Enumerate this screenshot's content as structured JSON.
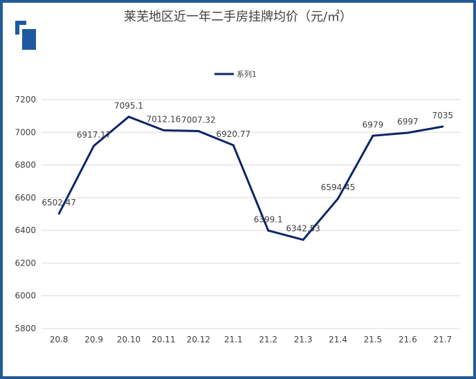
{
  "chart_data": {
    "type": "line",
    "title": "莱芜地区近一年二手房挂牌均价（元/㎡）",
    "categories": [
      "20.8",
      "20.9",
      "20.10",
      "20.11",
      "20.12",
      "21.1",
      "21.2",
      "21.3",
      "21.4",
      "21.5",
      "21.6",
      "21.7"
    ],
    "series": [
      {
        "name": "系列1",
        "color": "#0d2566",
        "values": [
          6502.47,
          6917.17,
          7095.1,
          7012.16,
          7007.32,
          6920.77,
          6399.1,
          6342.53,
          6594.45,
          6979,
          6997,
          7035
        ],
        "labels": [
          "6502.47",
          "6917.17",
          "7095.1",
          "7012.16",
          "7007.32",
          "6920.77",
          "6399.1",
          "6342.53",
          "6594.45",
          "6979",
          "6997",
          "7035"
        ]
      }
    ],
    "ylim": [
      5800,
      7200
    ],
    "yticks": [
      "5800",
      "6000",
      "6200",
      "6400",
      "6600",
      "6800",
      "7000",
      "7200"
    ],
    "xlabel": "",
    "ylabel": "",
    "grid": true,
    "legend_position": "top"
  },
  "colors": {
    "frame": "#245a96",
    "logo": "#1f5aa0",
    "line": "#0d2566",
    "grid": "#d9d9d9"
  },
  "icons": {
    "logo": "brand-logo-icon"
  }
}
